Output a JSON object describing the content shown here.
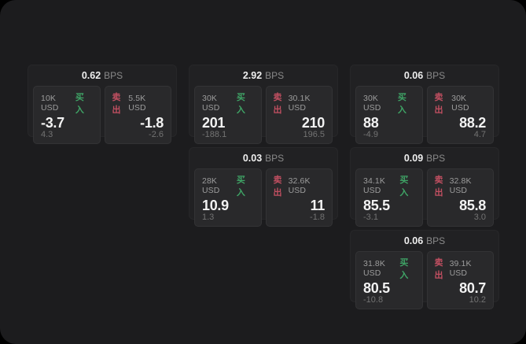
{
  "app": {
    "page_background": "#000000",
    "panel_background": "#1c1c1e"
  },
  "labels": {
    "bps": "BPS",
    "buy": "买入",
    "sell": "卖出"
  },
  "colors": {
    "buy_accent": "#3fa466",
    "sell_accent": "#c14f61",
    "price_text": "#f2f2f2",
    "delta_text": "#737373",
    "card_background": "#212123",
    "tile_background": "#29292b"
  },
  "cards": [
    {
      "bps": "0.62",
      "buy": {
        "amount": "10K USD",
        "price": "-3.7",
        "delta": "4.3"
      },
      "sell": {
        "amount": "5.5K USD",
        "price": "-1.8",
        "delta": "-2.6"
      }
    },
    {
      "bps": "2.92",
      "buy": {
        "amount": "30K USD",
        "price": "201",
        "delta": "-188.1"
      },
      "sell": {
        "amount": "30.1K USD",
        "price": "210",
        "delta": "196.5"
      }
    },
    {
      "bps": "0.06",
      "buy": {
        "amount": "30K USD",
        "price": "88",
        "delta": "-4.9"
      },
      "sell": {
        "amount": "30K USD",
        "price": "88.2",
        "delta": "4.7"
      }
    },
    {
      "bps": "0.03",
      "buy": {
        "amount": "28K USD",
        "price": "10.9",
        "delta": "1.3"
      },
      "sell": {
        "amount": "32.6K USD",
        "price": "11",
        "delta": "-1.8"
      }
    },
    {
      "bps": "0.09",
      "buy": {
        "amount": "34.1K USD",
        "price": "85.5",
        "delta": "-3.1"
      },
      "sell": {
        "amount": "32.8K USD",
        "price": "85.8",
        "delta": "3.0"
      }
    },
    {
      "bps": "0.06",
      "buy": {
        "amount": "31.8K USD",
        "price": "80.5",
        "delta": "-10.8"
      },
      "sell": {
        "amount": "39.1K USD",
        "price": "80.7",
        "delta": "10.2"
      }
    }
  ]
}
